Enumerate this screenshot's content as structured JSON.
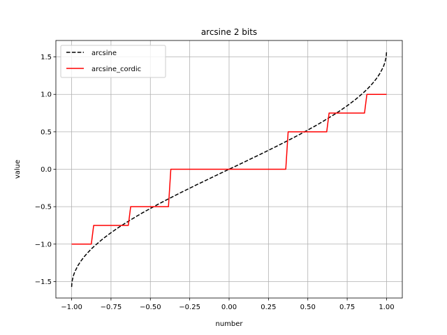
{
  "chart_data": {
    "type": "line",
    "title": "arcsine 2 bits",
    "xlabel": "number",
    "ylabel": "value",
    "xlim": [
      -1.1,
      1.1
    ],
    "ylim": [
      -1.72,
      1.72
    ],
    "xticks": [
      -1.0,
      -0.75,
      -0.5,
      -0.25,
      0.0,
      0.25,
      0.5,
      0.75,
      1.0
    ],
    "xtick_labels": [
      "−1.00",
      "−0.75",
      "−0.50",
      "−0.25",
      "0.00",
      "0.25",
      "0.50",
      "0.75",
      "1.00"
    ],
    "yticks": [
      -1.5,
      -1.0,
      -0.5,
      0.0,
      0.5,
      1.0,
      1.5
    ],
    "ytick_labels": [
      "−1.5",
      "−1.0",
      "−0.5",
      "0.0",
      "0.5",
      "1.0",
      "1.5"
    ],
    "grid": true,
    "legend_position": "top-left",
    "series": [
      {
        "name": "arcsine",
        "color": "#000000",
        "style": "dashed",
        "x": [
          -1.0,
          -0.998,
          -0.99,
          -0.98,
          -0.96,
          -0.94,
          -0.92,
          -0.9,
          -0.875,
          -0.85,
          -0.8,
          -0.75,
          -0.7,
          -0.65,
          -0.6,
          -0.55,
          -0.5,
          -0.45,
          -0.4,
          -0.35,
          -0.3,
          -0.25,
          -0.2,
          -0.15,
          -0.1,
          -0.05,
          0.0,
          0.05,
          0.1,
          0.15,
          0.2,
          0.25,
          0.3,
          0.35,
          0.4,
          0.45,
          0.5,
          0.55,
          0.6,
          0.65,
          0.7,
          0.75,
          0.8,
          0.85,
          0.875,
          0.9,
          0.92,
          0.94,
          0.96,
          0.98,
          0.99,
          0.998,
          1.0
        ],
        "y": [
          -1.571,
          -1.508,
          -1.429,
          -1.371,
          -1.287,
          -1.223,
          -1.168,
          -1.12,
          -1.065,
          -1.016,
          -0.927,
          -0.848,
          -0.775,
          -0.708,
          -0.644,
          -0.582,
          -0.524,
          -0.467,
          -0.412,
          -0.358,
          -0.305,
          -0.253,
          -0.201,
          -0.151,
          -0.1,
          -0.05,
          0.0,
          0.05,
          0.1,
          0.151,
          0.201,
          0.253,
          0.305,
          0.358,
          0.412,
          0.467,
          0.524,
          0.582,
          0.644,
          0.708,
          0.775,
          0.848,
          0.927,
          1.016,
          1.065,
          1.12,
          1.168,
          1.223,
          1.287,
          1.371,
          1.429,
          1.508,
          1.571
        ]
      },
      {
        "name": "arcsine_cordic",
        "color": "#ff0000",
        "style": "solid",
        "x": [
          -1.0,
          -0.875,
          -0.86,
          -0.64,
          -0.625,
          -0.385,
          -0.37,
          0.36,
          0.375,
          0.62,
          0.635,
          0.86,
          0.875,
          1.0
        ],
        "y": [
          -1.0,
          -1.0,
          -0.75,
          -0.75,
          -0.5,
          -0.5,
          0.0,
          0.0,
          0.5,
          0.5,
          0.75,
          0.75,
          1.0,
          1.0
        ]
      }
    ]
  }
}
